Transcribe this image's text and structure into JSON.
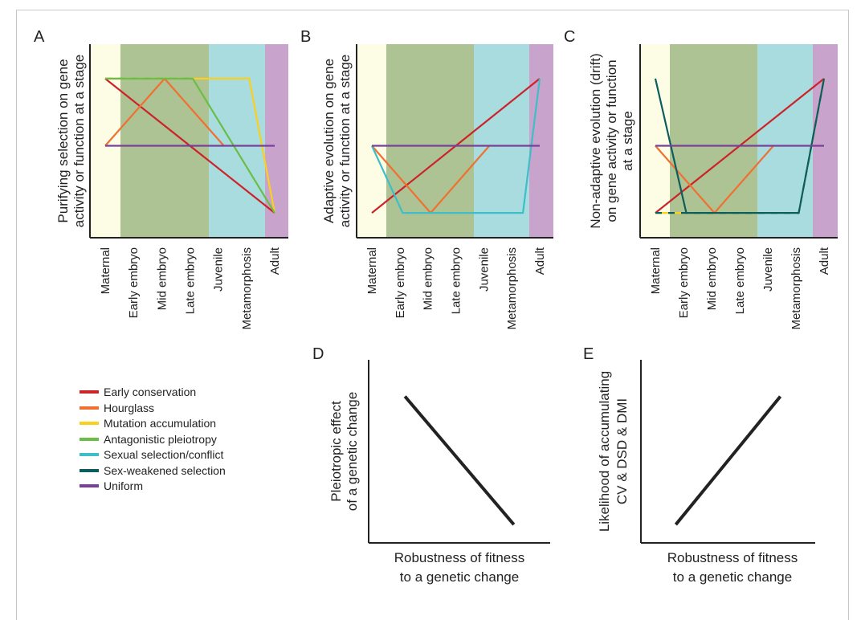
{
  "stages": [
    "Maternal",
    "Early embryo",
    "Mid embryo",
    "Late embryo",
    "Juvenile",
    "Metamorphosis",
    "Adult"
  ],
  "band_colors": {
    "maternal": "#fdfde6",
    "embryo": "#adc394",
    "juvenile_metamorphosis": "#a8dcdf",
    "adult": "#c8a3cc"
  },
  "legend": [
    {
      "label": "Early conservation",
      "color": "#cc2229"
    },
    {
      "label": "Hourglass",
      "color": "#f07031"
    },
    {
      "label": "Mutation accumulation",
      "color": "#fbcf1e"
    },
    {
      "label": "Antagonistic pleiotropy",
      "color": "#6cbd45"
    },
    {
      "label": "Sexual selection/conflict",
      "color": "#3dbec8"
    },
    {
      "label": "Sex-weakened selection",
      "color": "#0b5e5d"
    },
    {
      "label": "Uniform",
      "color": "#7a3f98"
    }
  ],
  "chart_data": [
    {
      "panel": "A",
      "type": "line",
      "ylabel": [
        "Purifying selection on gene",
        "activity or function at a stage"
      ],
      "categories": [
        "Maternal",
        "Early embryo",
        "Mid embryo",
        "Late embryo",
        "Juvenile",
        "Metamorphosis",
        "Adult"
      ],
      "ylim": [
        0,
        1
      ],
      "series": [
        {
          "name": "Early conservation",
          "points": [
            [
              0,
              0.9
            ],
            [
              6,
              0.1
            ]
          ]
        },
        {
          "name": "Hourglass",
          "points": [
            [
              0,
              0.5
            ],
            [
              2.1,
              0.9
            ],
            [
              4.2,
              0.5
            ]
          ]
        },
        {
          "name": "Mutation accumulation",
          "points": [
            [
              0,
              0.9
            ],
            [
              5.1,
              0.9
            ],
            [
              6,
              0.1
            ]
          ],
          "dashed_with": "Antagonistic pleiotropy",
          "dashed_until": 3
        },
        {
          "name": "Antagonistic pleiotropy",
          "points": [
            [
              0,
              0.9
            ],
            [
              3.1,
              0.9
            ],
            [
              6,
              0.1
            ]
          ]
        },
        {
          "name": "Uniform",
          "points": [
            [
              0,
              0.5
            ],
            [
              6,
              0.5
            ]
          ]
        }
      ]
    },
    {
      "panel": "B",
      "type": "line",
      "ylabel": [
        "Adaptive evolution on gene",
        "activity or function at a stage"
      ],
      "categories": [
        "Maternal",
        "Early embryo",
        "Mid embryo",
        "Late embryo",
        "Juvenile",
        "Metamorphosis",
        "Adult"
      ],
      "ylim": [
        0,
        1
      ],
      "series": [
        {
          "name": "Early conservation",
          "points": [
            [
              0,
              0.1
            ],
            [
              6,
              0.9
            ]
          ]
        },
        {
          "name": "Hourglass",
          "points": [
            [
              0,
              0.5
            ],
            [
              2.1,
              0.1
            ],
            [
              4.2,
              0.5
            ]
          ]
        },
        {
          "name": "Sexual selection/conflict",
          "points": [
            [
              0,
              0.5
            ],
            [
              1.1,
              0.1
            ],
            [
              5.4,
              0.1
            ],
            [
              6,
              0.9
            ]
          ]
        },
        {
          "name": "Uniform",
          "points": [
            [
              0,
              0.5
            ],
            [
              6,
              0.5
            ]
          ]
        }
      ]
    },
    {
      "panel": "C",
      "type": "line",
      "ylabel": [
        "Non-adaptive evolution (drift)",
        "on gene activity or function",
        "at a stage"
      ],
      "categories": [
        "Maternal",
        "Early embryo",
        "Mid embryo",
        "Late embryo",
        "Juvenile",
        "Metamorphosis",
        "Adult"
      ],
      "ylim": [
        0,
        1
      ],
      "series": [
        {
          "name": "Early conservation",
          "points": [
            [
              0,
              0.1
            ],
            [
              6,
              0.9
            ]
          ]
        },
        {
          "name": "Hourglass",
          "points": [
            [
              0,
              0.5
            ],
            [
              2.1,
              0.1
            ],
            [
              4.2,
              0.5
            ]
          ]
        },
        {
          "name": "Mutation accumulation",
          "points": [
            [
              0,
              0.1
            ],
            [
              5.1,
              0.1
            ],
            [
              6,
              0.9
            ]
          ],
          "dashed_with": "Sex-weakened selection"
        },
        {
          "name": "Sex-weakened selection",
          "points": [
            [
              0,
              0.9
            ],
            [
              1.1,
              0.1
            ],
            [
              5.1,
              0.1
            ],
            [
              6,
              0.9
            ]
          ]
        },
        {
          "name": "Uniform",
          "points": [
            [
              0,
              0.5
            ],
            [
              6,
              0.5
            ]
          ]
        }
      ]
    },
    {
      "panel": "D",
      "type": "line",
      "ylabel": [
        "Pleiotropic effect",
        "of a genetic change"
      ],
      "xlabel": [
        "Robustness of fitness",
        "to a genetic change"
      ],
      "series": [
        {
          "points": [
            [
              0.2,
              0.8
            ],
            [
              0.8,
              0.1
            ]
          ]
        }
      ]
    },
    {
      "panel": "E",
      "type": "line",
      "ylabel": [
        "Likelihood of accumulating",
        "CV & DSD & DMI"
      ],
      "xlabel": [
        "Robustness of fitness",
        "to a genetic change"
      ],
      "series": [
        {
          "points": [
            [
              0.2,
              0.1
            ],
            [
              0.8,
              0.8
            ]
          ]
        }
      ]
    }
  ]
}
